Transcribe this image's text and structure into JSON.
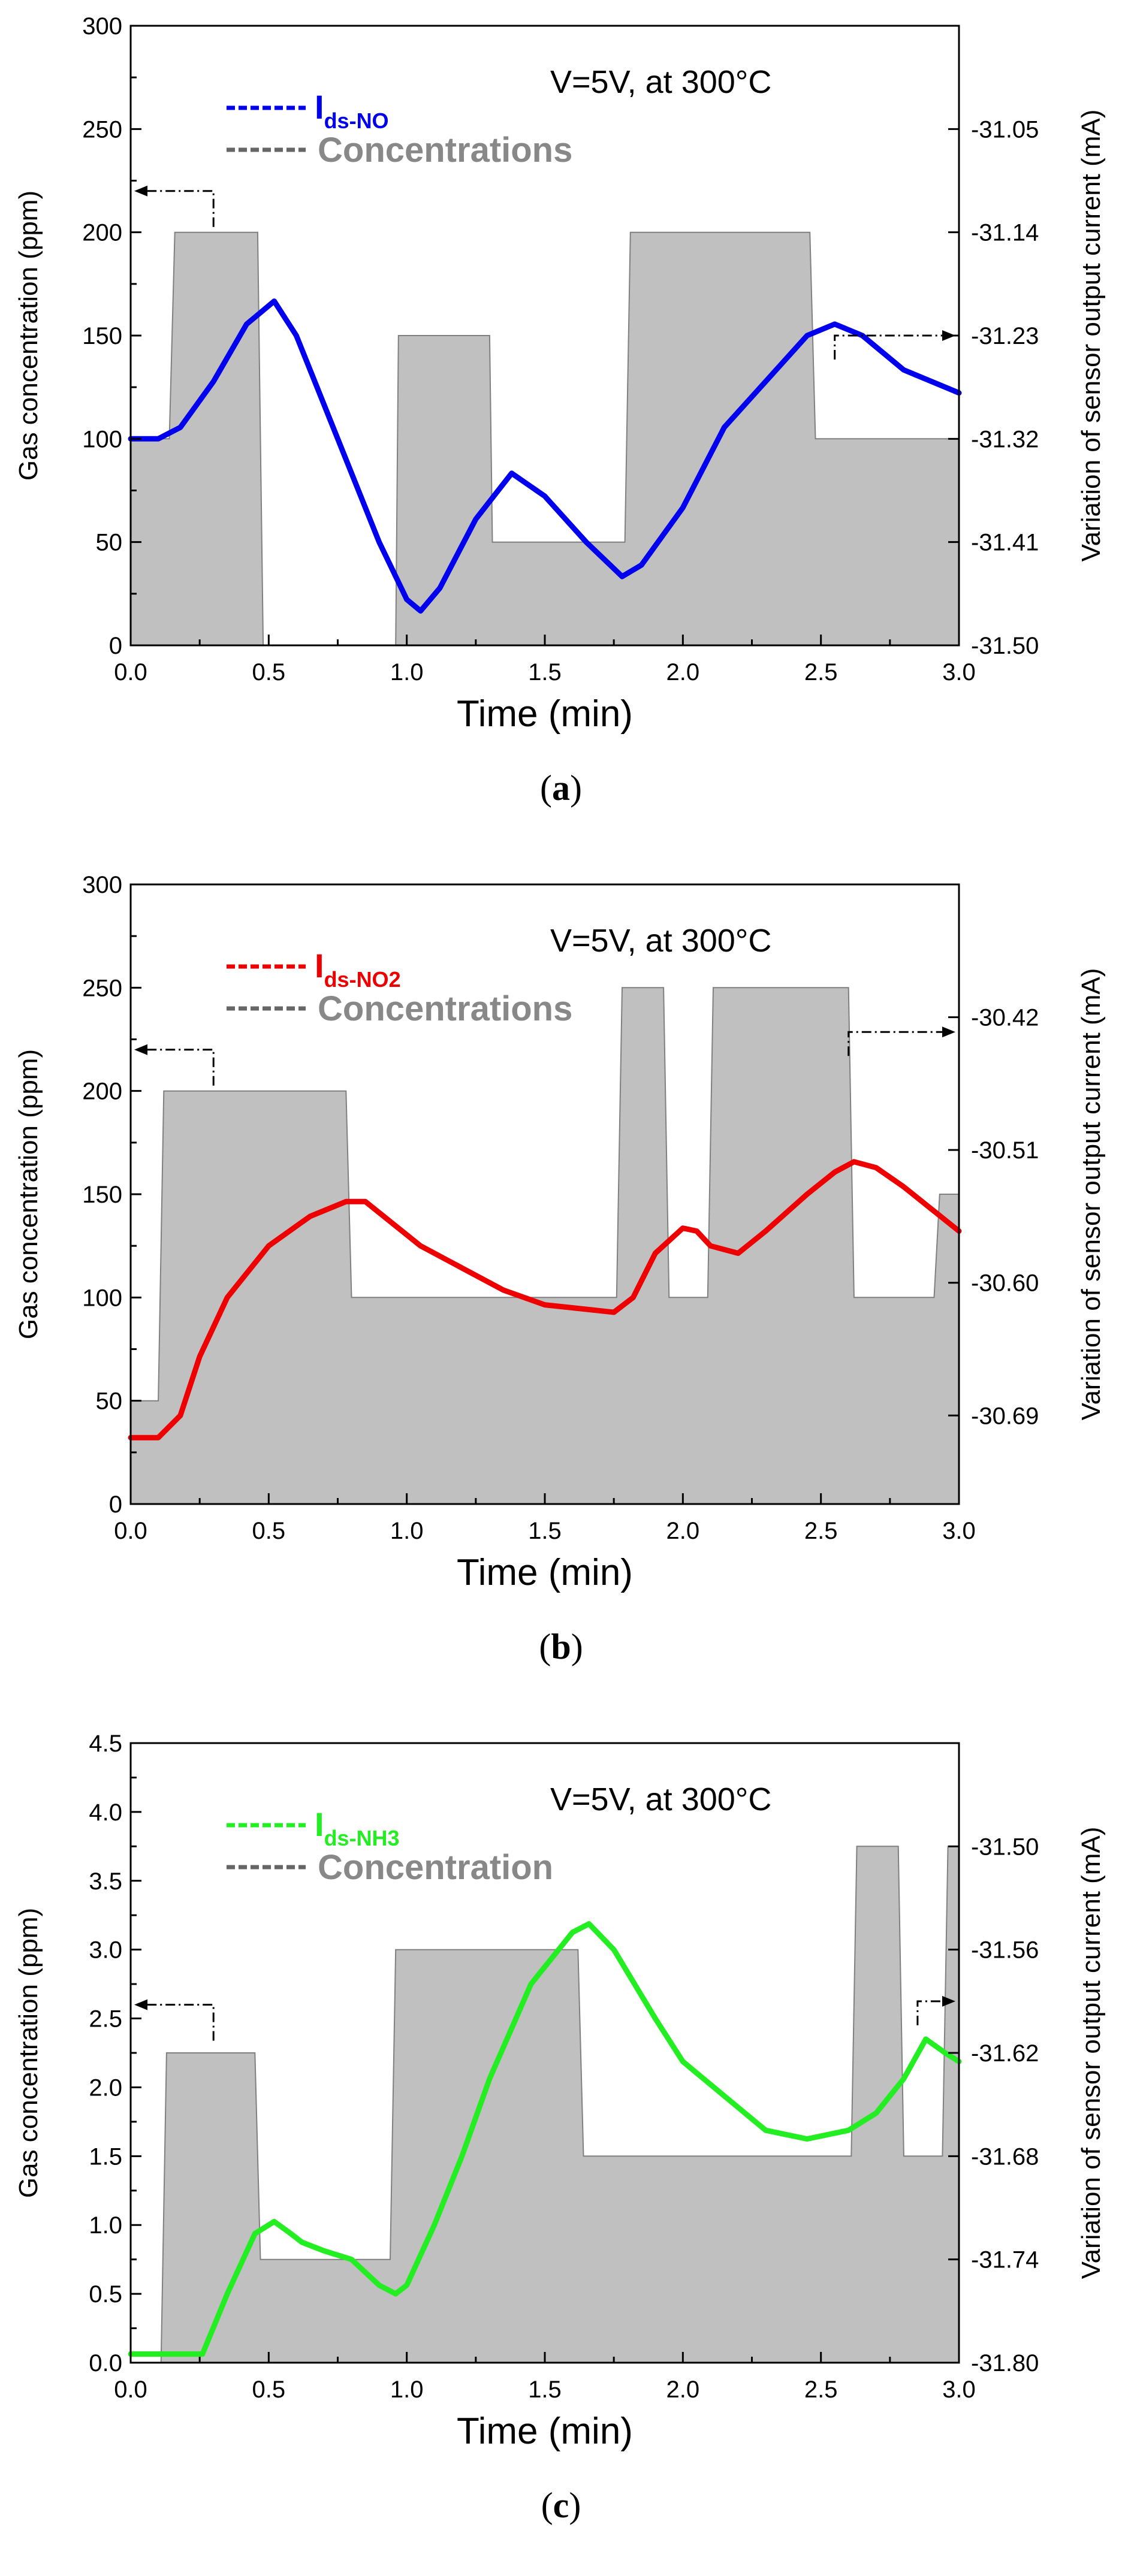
{
  "chart_data": [
    {
      "type": "line",
      "panel_label": "a",
      "annotation": "V=5V, at 300°C",
      "legend": {
        "current": {
          "main": "I",
          "sub": "ds-NO"
        },
        "conc": "Concentrations",
        "current_color": "#0000EE"
      },
      "xlabel": "Time (min)",
      "ylabel": "Gas concentration (ppm)",
      "y2label": "Variation of sensor output current (mA)",
      "xlim": [
        0,
        3
      ],
      "ylim": [
        0,
        300
      ],
      "y2lim": [
        -31.5,
        -30.96
      ],
      "xticks": [
        "0.0",
        "0.5",
        "1.0",
        "1.5",
        "2.0",
        "2.5",
        "3.0"
      ],
      "yticks": [
        "0",
        "50",
        "100",
        "150",
        "200",
        "250",
        "300"
      ],
      "y2ticks": [
        "-31.05",
        "-31.14",
        "-31.23",
        "-31.32",
        "-31.41",
        "-31.50"
      ],
      "concentration_series": {
        "name": "Concentrations",
        "x": [
          0,
          0.14,
          0.16,
          0.46,
          0.48,
          0.96,
          0.97,
          1.3,
          1.31,
          1.79,
          1.81,
          2.46,
          2.48,
          3.0
        ],
        "y": [
          100,
          100,
          200,
          200,
          0,
          0,
          150,
          150,
          50,
          50,
          200,
          200,
          100,
          100
        ]
      },
      "current_series": {
        "name": "I ds-NO",
        "x": [
          0,
          0.1,
          0.18,
          0.3,
          0.42,
          0.52,
          0.6,
          0.75,
          0.9,
          1.0,
          1.05,
          1.12,
          1.25,
          1.38,
          1.5,
          1.65,
          1.78,
          1.85,
          2.0,
          2.15,
          2.3,
          2.45,
          2.55,
          2.65,
          2.8,
          3.0
        ],
        "y": [
          -31.32,
          -31.32,
          -31.31,
          -31.27,
          -31.22,
          -31.2,
          -31.23,
          -31.32,
          -31.41,
          -31.46,
          -31.47,
          -31.45,
          -31.39,
          -31.35,
          -31.37,
          -31.41,
          -31.44,
          -31.43,
          -31.38,
          -31.31,
          -31.27,
          -31.23,
          -31.22,
          -31.23,
          -31.26,
          -31.28
        ]
      },
      "arrows": {
        "left": "at x=0.3, y=220 pointing to left axis",
        "right": "at x=2.55, y=-31.23 pointing to right axis"
      }
    },
    {
      "type": "line",
      "panel_label": "b",
      "annotation": "V=5V, at 300°C",
      "legend": {
        "current": {
          "main": "I",
          "sub": "ds-NO2"
        },
        "conc": "Concentrations",
        "current_color": "#EE0000"
      },
      "xlabel": "Time (min)",
      "ylabel": "Gas concentration (ppm)",
      "y2label": "Variation of sensor output current (mA)",
      "xlim": [
        0,
        3
      ],
      "ylim": [
        0,
        300
      ],
      "y2lim": [
        -30.75,
        -30.33
      ],
      "xticks": [
        "0.0",
        "0.5",
        "1.0",
        "1.5",
        "2.0",
        "2.5",
        "3.0"
      ],
      "yticks": [
        "0",
        "50",
        "100",
        "150",
        "200",
        "250",
        "300"
      ],
      "y2ticks": [
        "-30.42",
        "-30.51",
        "-30.60",
        "-30.69"
      ],
      "concentration_series": {
        "name": "Concentrations",
        "x": [
          0,
          0.1,
          0.12,
          0.78,
          0.8,
          1.76,
          1.78,
          1.93,
          1.95,
          2.09,
          2.11,
          2.6,
          2.62,
          2.91,
          2.93,
          3.0
        ],
        "y": [
          50,
          50,
          200,
          200,
          100,
          100,
          250,
          250,
          100,
          100,
          250,
          250,
          100,
          100,
          150,
          150
        ]
      },
      "current_series": {
        "name": "I ds-NO2",
        "x": [
          0,
          0.1,
          0.18,
          0.25,
          0.35,
          0.5,
          0.65,
          0.78,
          0.85,
          0.95,
          1.05,
          1.2,
          1.35,
          1.5,
          1.65,
          1.75,
          1.82,
          1.9,
          2.0,
          2.05,
          2.1,
          2.2,
          2.3,
          2.45,
          2.55,
          2.62,
          2.7,
          2.8,
          2.9,
          3.0
        ],
        "y": [
          -30.705,
          -30.705,
          -30.69,
          -30.65,
          -30.61,
          -30.575,
          -30.555,
          -30.545,
          -30.545,
          -30.56,
          -30.575,
          -30.59,
          -30.605,
          -30.615,
          -30.618,
          -30.62,
          -30.61,
          -30.58,
          -30.563,
          -30.565,
          -30.575,
          -30.58,
          -30.565,
          -30.54,
          -30.525,
          -30.518,
          -30.522,
          -30.535,
          -30.55,
          -30.565
        ]
      },
      "arrows": {
        "left": "at x=0.3, y=220 pointing to left axis",
        "right": "at x=2.6, y=-30.43 pointing to right axis"
      }
    },
    {
      "type": "line",
      "panel_label": "c",
      "annotation": "V=5V, at 300°C",
      "legend": {
        "current": {
          "main": "I",
          "sub": "ds-NH3"
        },
        "conc": "Concentration",
        "current_color": "#22EE22"
      },
      "xlabel": "Time (min)",
      "ylabel": "Gas concentration (ppm)",
      "y2label": "Variation of sensor output current (mA)",
      "xlim": [
        0,
        3
      ],
      "ylim": [
        0,
        4.5
      ],
      "y2lim": [
        -31.8,
        -31.44
      ],
      "xticks": [
        "0.0",
        "0.5",
        "1.0",
        "1.5",
        "2.0",
        "2.5",
        "3.0"
      ],
      "yticks": [
        "0.0",
        "0.5",
        "1.0",
        "1.5",
        "2.0",
        "2.5",
        "3.0",
        "3.5",
        "4.0",
        "4.5"
      ],
      "y2ticks": [
        "-31.50",
        "-31.56",
        "-31.62",
        "-31.68",
        "-31.74",
        "-31.80"
      ],
      "concentration_series": {
        "name": "Concentration",
        "x": [
          0,
          0.11,
          0.13,
          0.45,
          0.47,
          0.94,
          0.96,
          1.62,
          1.64,
          2.61,
          2.63,
          2.78,
          2.8,
          2.94,
          2.96,
          3.0
        ],
        "y": [
          0,
          0,
          2.25,
          2.25,
          0.75,
          0.75,
          3.0,
          3.0,
          1.5,
          1.5,
          3.75,
          3.75,
          1.5,
          1.5,
          3.75,
          3.75
        ]
      },
      "current_series": {
        "name": "I ds-NH3",
        "x": [
          0,
          0.2,
          0.26,
          0.35,
          0.45,
          0.52,
          0.58,
          0.62,
          0.7,
          0.8,
          0.9,
          0.96,
          1.0,
          1.1,
          1.2,
          1.3,
          1.45,
          1.6,
          1.66,
          1.75,
          1.9,
          2.0,
          2.15,
          2.3,
          2.45,
          2.6,
          2.7,
          2.8,
          2.88,
          2.95,
          3.0
        ],
        "y": [
          -31.795,
          -31.795,
          -31.795,
          -31.76,
          -31.725,
          -31.718,
          -31.725,
          -31.73,
          -31.735,
          -31.74,
          -31.755,
          -31.76,
          -31.755,
          -31.72,
          -31.68,
          -31.635,
          -31.58,
          -31.55,
          -31.545,
          -31.56,
          -31.6,
          -31.625,
          -31.645,
          -31.665,
          -31.67,
          -31.665,
          -31.655,
          -31.635,
          -31.612,
          -31.62,
          -31.625
        ]
      },
      "arrows": {
        "left": "at x=0.3, y=2.6 pointing to left axis",
        "right": "at x=2.85, y=-31.59 pointing to right axis"
      }
    }
  ]
}
